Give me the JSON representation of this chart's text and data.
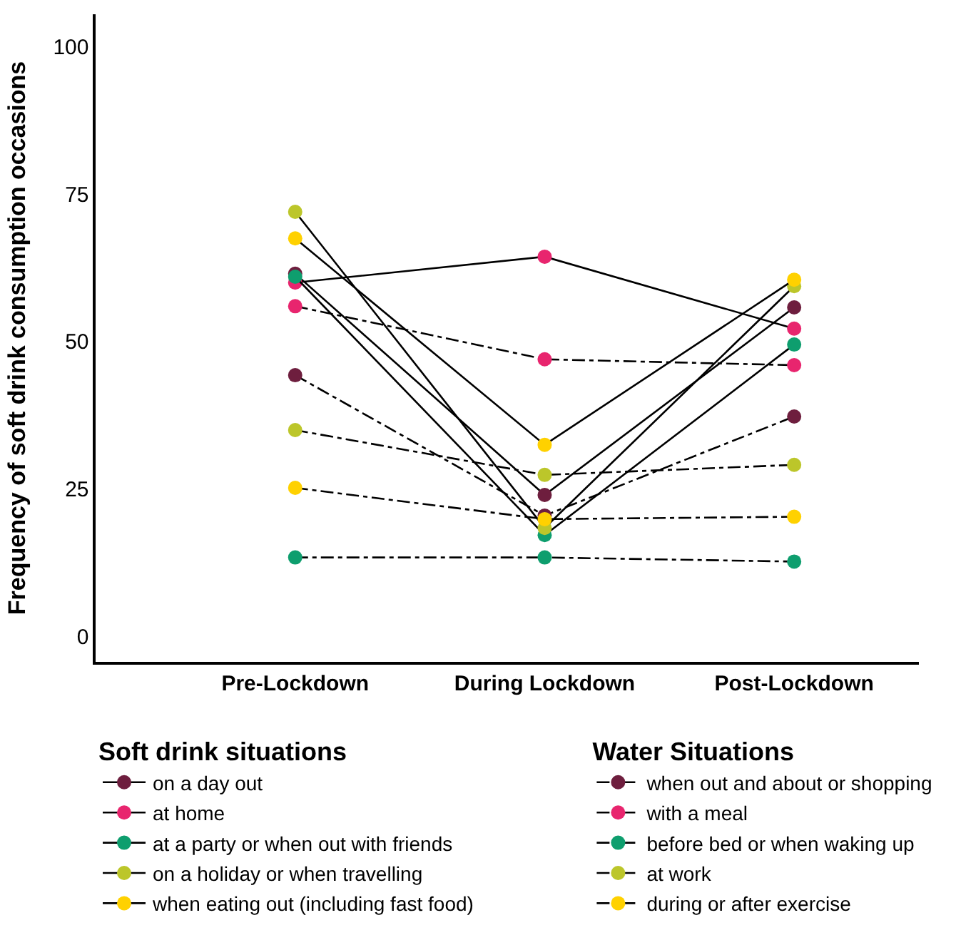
{
  "chart_data": {
    "type": "line",
    "ylabel": "Frequency of soft drink consumption occasions",
    "categories": [
      "Pre-Lockdown",
      "During Lockdown",
      "Post-Lockdown"
    ],
    "ylim": [
      -4.3,
      105.5
    ],
    "yticks": [
      0,
      25,
      50,
      75,
      100
    ],
    "marker": "circle",
    "legend": "bottom",
    "legend_title": [
      "Soft drink situations",
      "Water Situations"
    ],
    "series": [
      {
        "name": "on a day out",
        "color": "#6e1e3e",
        "line_style": "solid",
        "values": [
          61.5,
          24,
          55.8
        ]
      },
      {
        "name": "at home",
        "color": "#e8256e",
        "line_style": "solid",
        "values": [
          60,
          64.4,
          52.2
        ]
      },
      {
        "name": "at a party or when out with friends",
        "color": "#0e9e6e",
        "line_style": "solid",
        "values": [
          61,
          17.2,
          49.5
        ]
      },
      {
        "name": "on a holiday or when travelling",
        "color": "#bcc62a",
        "line_style": "solid",
        "values": [
          72,
          18.4,
          59.4
        ]
      },
      {
        "name": "when eating out (including fast food)",
        "color": "#ffd100",
        "line_style": "solid",
        "values": [
          67.5,
          32.5,
          60.5
        ]
      },
      {
        "name": "when out and about or shopping",
        "color": "#6e1e3e",
        "line_style": "dashed",
        "values": [
          44.3,
          20.5,
          37.3
        ]
      },
      {
        "name": "with a meal",
        "color": "#e8256e",
        "line_style": "dashed",
        "values": [
          56,
          47,
          46
        ]
      },
      {
        "name": "before bed or when waking up",
        "color": "#0e9e6e",
        "line_style": "dashed",
        "values": [
          13.4,
          13.4,
          12.7
        ]
      },
      {
        "name": "at work",
        "color": "#bcc62a",
        "line_style": "dashed",
        "values": [
          35,
          27.4,
          29.1
        ]
      },
      {
        "name": "during or after exercise",
        "color": "#ffd100",
        "line_style": "dashed",
        "values": [
          25.2,
          19.9,
          20.3
        ]
      }
    ]
  }
}
